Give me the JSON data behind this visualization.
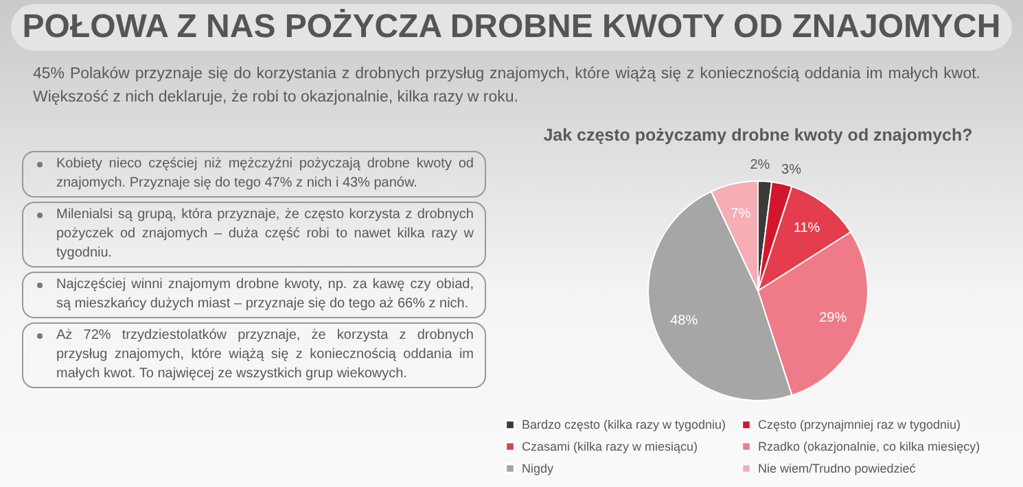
{
  "chart_data": {
    "type": "pie",
    "title": "POŁOWA Z NAS POŻYCZA DROBNE KWOTY OD ZNAJOMYCH",
    "subtitle": "45% Polaków przyznaje się do korzystania z drobnych przysług znajomych, które wiążą się z koniecznością oddania im małych kwot. Większość z nich deklaruje, że robi to okazjonalnie, kilka razy w roku.",
    "annotations": [
      "Jak często pożyczamy drobne kwoty od znajomych?",
      "Kobiety nieco częściej niż mężczyźni pożyczają drobne kwoty od znajomych. Przyznaje się do tego 47% z nich i 43% panów.",
      "Milenialsi są grupą, która przyznaje, że często korzysta z drobnych pożyczek od znajomych – duża część robi to nawet kilka razy w tygodniu.",
      "Najczęściej winni znajomym drobne kwoty, np. za kawę czy obiad, są mieszkańcy dużych miast – przyznaje się do tego aż 66% z nich.",
      "Aż 72% trzydziestolatków przyznaje, że korzysta z drobnych przysług znajomych, które wiążą się z koniecznością oddania im małych kwot. To najwięcej ze wszystkich grup wiekowych."
    ],
    "categories": [
      "Bardzo często (kilka razy w tygodniu)",
      "Często (przynajmniej raz w tygodniu)",
      "Czasami (kilka razy w miesiącu)",
      "Rzadko (okazjonalnie, co kilka miesięcy)",
      "Nigdy",
      "Nie wiem/Trudno powiedzieć"
    ],
    "values": [
      2,
      3,
      11,
      29,
      48,
      7
    ],
    "value_labels": [
      "2%",
      "3%",
      "11%",
      "29%",
      "48%",
      "7%"
    ],
    "colors": [
      "#3a3a3a",
      "#d4162c",
      "#e33d4e",
      "#ee7b87",
      "#a6a6a6",
      "#f5adb6"
    ],
    "legend": "bottom"
  }
}
